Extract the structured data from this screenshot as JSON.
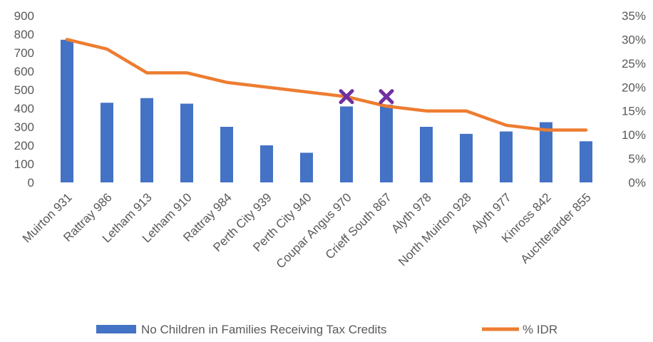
{
  "chart_data": {
    "type": "bar",
    "categories": [
      "Muirton 931",
      "Rattray 986",
      "Letham 913",
      "Letham 910",
      "Rattray 984",
      "Perth City 939",
      "Perth City 940",
      "Coupar Angus 970",
      "Crieff South 867",
      "Alyth 978",
      "North Muirton 928",
      "Alyth 977",
      "Kinross 842",
      "Auchterarder 855"
    ],
    "series": [
      {
        "name": "No Children in Families Receiving Tax Credits",
        "type": "bar",
        "axis": "left",
        "color": "#4472C4",
        "values": [
          770,
          430,
          455,
          425,
          300,
          200,
          160,
          410,
          420,
          300,
          262,
          275,
          325,
          222
        ]
      },
      {
        "name": "% IDR",
        "type": "line",
        "axis": "right",
        "color": "#ED7D31",
        "values": [
          0.3,
          0.28,
          0.23,
          0.23,
          0.21,
          0.2,
          0.19,
          0.18,
          0.16,
          0.15,
          0.15,
          0.12,
          0.11,
          0.11
        ]
      }
    ],
    "markers": {
      "symbol": "x",
      "color": "#7030A0",
      "categories": [
        "Coupar Angus 970",
        "Crieff South 867"
      ],
      "y_right": 0.18
    },
    "yaxis_left": {
      "min": 0,
      "max": 900,
      "step": 100,
      "ticks": [
        "0",
        "100",
        "200",
        "300",
        "400",
        "500",
        "600",
        "700",
        "800",
        "900"
      ]
    },
    "yaxis_right": {
      "min": 0,
      "max": 0.35,
      "step": 0.05,
      "ticks": [
        "0%",
        "5%",
        "10%",
        "15%",
        "20%",
        "25%",
        "30%",
        "35%"
      ]
    },
    "grid": false,
    "legend": {
      "position": "bottom"
    }
  }
}
